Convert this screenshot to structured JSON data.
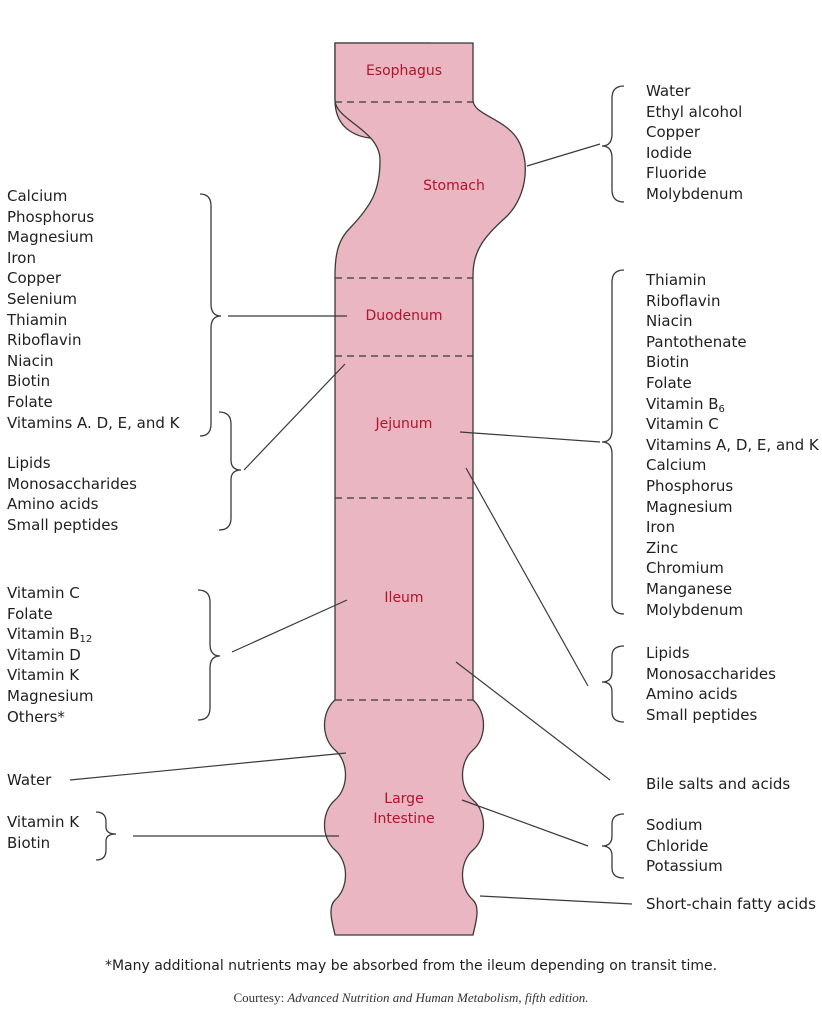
{
  "organs": {
    "esophagus": "Esophagus",
    "stomach": "Stomach",
    "duodenum": "Duodenum",
    "jejunum": "Jejunum",
    "ileum": "Ileum",
    "large_intestine_1": "Large",
    "large_intestine_2": "Intestine"
  },
  "colors": {
    "tract_fill": "#e9b6c1",
    "organ_label": "#b3132b"
  },
  "left": {
    "duodenum_list": [
      "Calcium",
      "Phosphorus",
      "Magnesium",
      "Iron",
      "Copper",
      "Selenium",
      "Thiamin",
      "Riboflavin",
      "Niacin",
      "Biotin",
      "Folate",
      "Vitamins A. D, E, and K"
    ],
    "duodenum_list2": [
      "Lipids",
      "Monosaccharides",
      "Amino acids",
      "Small peptides"
    ],
    "ileum_list": [
      "Vitamin C",
      "Folate",
      "Vitamin B",
      "Vitamin D",
      "Vitamin K",
      "Magnesium",
      "Others*"
    ],
    "ileum_b12_sub": "12",
    "water": "Water",
    "large_list": [
      "Vitamin K",
      "Biotin"
    ]
  },
  "right": {
    "stomach_list": [
      "Water",
      "Ethyl alcohol",
      "Copper",
      "Iodide",
      "Fluoride",
      "Molybdenum"
    ],
    "jejunum_list": [
      "Thiamin",
      "Riboflavin",
      "Niacin",
      "Pantothenate",
      "Biotin",
      "Folate",
      "Vitamin B",
      "Vitamin C",
      "Vitamins A, D, E, and K",
      "Calcium",
      "Phosphorus",
      "Magnesium",
      "Iron",
      "Zinc",
      "Chromium",
      "Manganese",
      "Molybdenum"
    ],
    "jejunum_b6_sub": "6",
    "jejunum_list2": [
      "Lipids",
      "Monosaccharides",
      "Amino acids",
      "Small peptides"
    ],
    "bile": "Bile salts and acids",
    "large_list": [
      "Sodium",
      "Chloride",
      "Potassium"
    ],
    "scfa": "Short-chain fatty acids"
  },
  "footnote": "*Many additional nutrients may be absorbed from the ileum depending on transit time.",
  "courtesy_prefix": "Courtesy: ",
  "courtesy_source": "Advanced Nutrition and Human Metabolism, fifth edition."
}
